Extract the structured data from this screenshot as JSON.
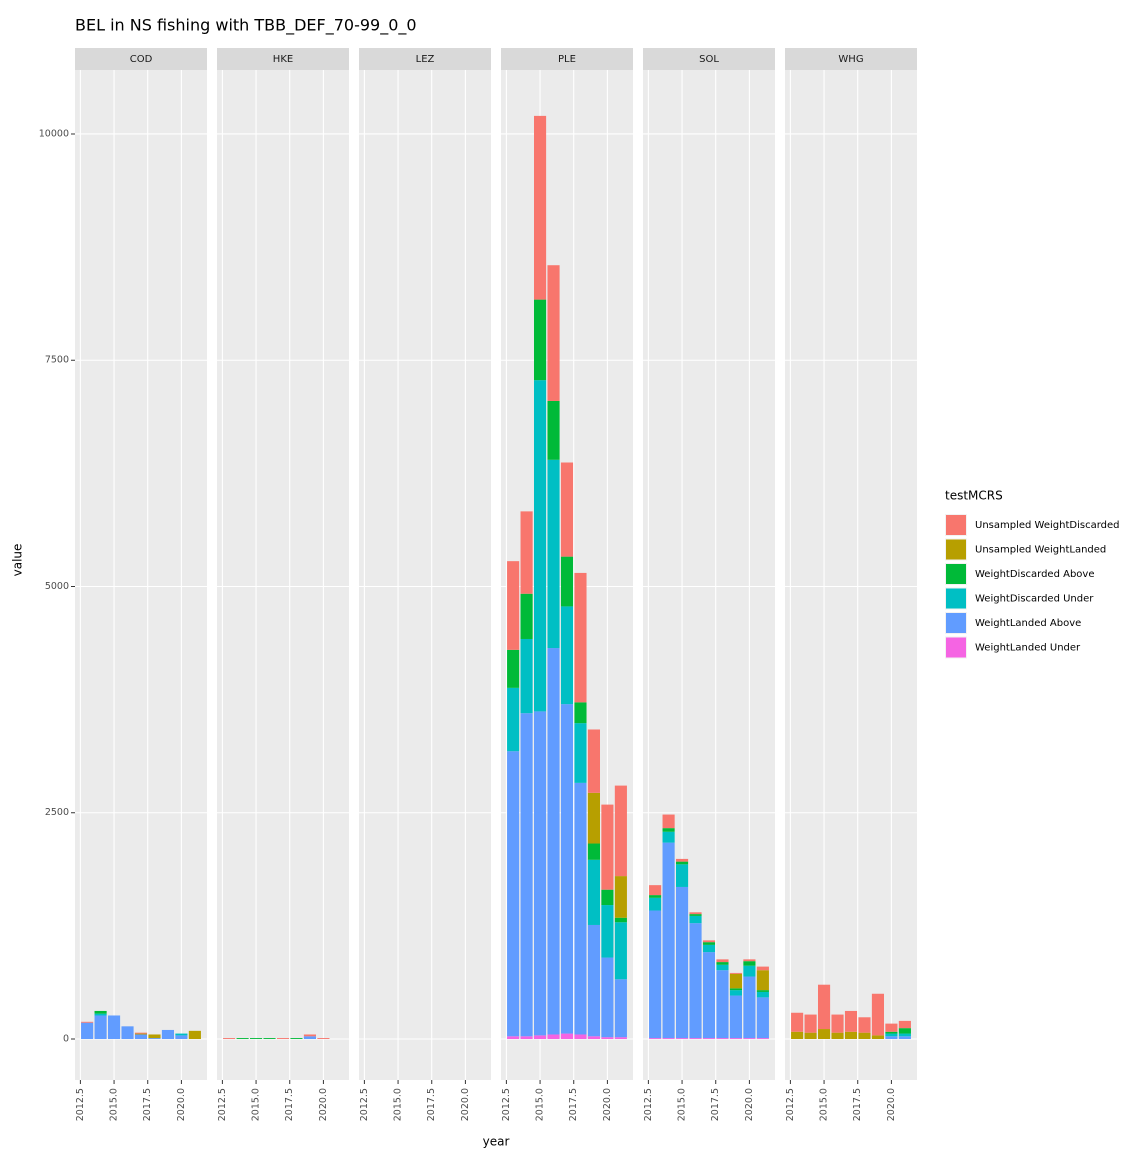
{
  "chart_data": {
    "type": "bar",
    "title": "BEL in NS fishing with TBB_DEF_70-99_0_0",
    "xlabel": "year",
    "ylabel": "value",
    "legend_title": "testMCRS",
    "legend": "right",
    "grid": true,
    "x": [
      2013,
      2014,
      2015,
      2016,
      2017,
      2018,
      2019,
      2020,
      2021
    ],
    "xlim": [
      2012.1,
      2021.9
    ],
    "xticks": [
      2012.5,
      {
        "value": 2015,
        "label": "2015.0"
      },
      2017.5,
      {
        "value": 2020,
        "label": "2020.0"
      }
    ],
    "ylim": [
      -453,
      10707
    ],
    "yticks": [
      0,
      2500,
      5000,
      7500,
      10000
    ],
    "series": [
      {
        "name": "Unsampled WeightDiscarded",
        "color": "#F8766D"
      },
      {
        "name": "Unsampled WeightLanded",
        "color": "#B79F00"
      },
      {
        "name": "WeightDiscarded Above",
        "color": "#00BA38"
      },
      {
        "name": "WeightDiscarded Under",
        "color": "#00BFC4"
      },
      {
        "name": "WeightLanded Above",
        "color": "#619CFF"
      },
      {
        "name": "WeightLanded Under",
        "color": "#F564E3"
      }
    ],
    "facets": [
      {
        "name": "COD",
        "values": [
          [
            10,
            0,
            0,
            0,
            10,
            0,
            0,
            0,
            0
          ],
          [
            0,
            0,
            0,
            0,
            10,
            40,
            0,
            0,
            90
          ],
          [
            0,
            30,
            0,
            0,
            0,
            0,
            0,
            0,
            0
          ],
          [
            0,
            20,
            0,
            0,
            0,
            0,
            0,
            20,
            0
          ],
          [
            180,
            260,
            260,
            140,
            50,
            10,
            100,
            40,
            0
          ],
          [
            0,
            0,
            0,
            0,
            0,
            0,
            0,
            0,
            0
          ]
        ]
      },
      {
        "name": "HKE",
        "values": [
          [
            10,
            0,
            0,
            0,
            10,
            0,
            20,
            10,
            0
          ],
          [
            0,
            0,
            0,
            0,
            0,
            0,
            0,
            0,
            0
          ],
          [
            0,
            10,
            10,
            10,
            0,
            10,
            0,
            0,
            0
          ],
          [
            0,
            0,
            0,
            0,
            0,
            0,
            0,
            0,
            0
          ],
          [
            0,
            0,
            0,
            0,
            0,
            0,
            30,
            0,
            0
          ],
          [
            0,
            0,
            0,
            0,
            0,
            0,
            0,
            0,
            0
          ]
        ]
      },
      {
        "name": "LEZ",
        "values": [
          [
            0,
            0,
            0,
            0,
            0,
            0,
            0,
            0,
            0
          ],
          [
            0,
            0,
            0,
            0,
            0,
            0,
            0,
            0,
            0
          ],
          [
            0,
            0,
            0,
            0,
            0,
            0,
            0,
            0,
            0
          ],
          [
            0,
            0,
            0,
            0,
            0,
            0,
            0,
            0,
            0
          ],
          [
            0,
            0,
            0,
            0,
            0,
            0,
            0,
            0,
            0
          ],
          [
            0,
            0,
            0,
            0,
            0,
            0,
            0,
            0,
            0
          ]
        ]
      },
      {
        "name": "PLE",
        "values": [
          [
            980,
            910,
            2030,
            1500,
            1040,
            1430,
            700,
            940,
            1000
          ],
          [
            0,
            0,
            0,
            0,
            0,
            0,
            560,
            0,
            460
          ],
          [
            420,
            500,
            890,
            650,
            550,
            230,
            180,
            170,
            50
          ],
          [
            700,
            820,
            3660,
            2080,
            1080,
            660,
            720,
            580,
            630
          ],
          [
            3150,
            3570,
            3580,
            4270,
            3640,
            2780,
            1230,
            880,
            640
          ],
          [
            30,
            30,
            40,
            50,
            60,
            50,
            30,
            20,
            20
          ]
        ]
      },
      {
        "name": "SOL",
        "values": [
          [
            110,
            150,
            30,
            20,
            20,
            30,
            10,
            20,
            40
          ],
          [
            0,
            0,
            0,
            0,
            0,
            0,
            160,
            0,
            220
          ],
          [
            30,
            40,
            30,
            20,
            30,
            30,
            20,
            50,
            20
          ],
          [
            140,
            120,
            250,
            80,
            80,
            60,
            60,
            120,
            60
          ],
          [
            1410,
            2160,
            1670,
            1270,
            950,
            750,
            470,
            680,
            450
          ],
          [
            10,
            10,
            10,
            10,
            10,
            10,
            10,
            10,
            10
          ]
        ]
      },
      {
        "name": "WHG",
        "values": [
          [
            210,
            200,
            490,
            200,
            230,
            170,
            460,
            90,
            80
          ],
          [
            80,
            70,
            110,
            70,
            80,
            70,
            40,
            0,
            0
          ],
          [
            0,
            0,
            0,
            0,
            0,
            0,
            0,
            20,
            60
          ],
          [
            0,
            0,
            0,
            0,
            0,
            0,
            0,
            30,
            30
          ],
          [
            0,
            0,
            0,
            0,
            0,
            0,
            0,
            30,
            30
          ],
          [
            0,
            0,
            0,
            0,
            0,
            0,
            0,
            0,
            0
          ]
        ]
      }
    ]
  }
}
